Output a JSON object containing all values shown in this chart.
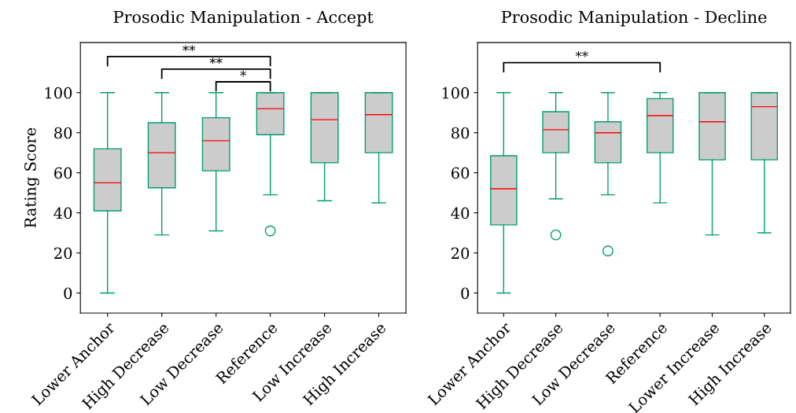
{
  "chart_data": [
    {
      "type": "box",
      "title": "Prosodic Manipulation - Accept",
      "ylabel": "Rating Score",
      "categories": [
        "Lower Anchor",
        "High Decrease",
        "Low Decrease",
        "Reference",
        "Low Increase",
        "High Increase"
      ],
      "ylim": [
        -10,
        125
      ],
      "yticks": [
        0,
        20,
        40,
        60,
        80,
        100
      ],
      "grid": false,
      "series": [
        {
          "color": "#009e73",
          "boxes": [
            {
              "low": 0,
              "q1": 41,
              "median": 55,
              "q3": 72,
              "high": 100
            },
            {
              "low": 29,
              "q1": 52.5,
              "median": 70,
              "q3": 85,
              "high": 100
            },
            {
              "low": 31,
              "q1": 61,
              "median": 76,
              "q3": 87.5,
              "high": 100
            },
            {
              "low": 49,
              "q1": 79,
              "median": 92,
              "q3": 100,
              "high": 100,
              "outliers": [
                31
              ]
            },
            {
              "low": 46,
              "q1": 65,
              "median": 86.5,
              "q3": 100,
              "high": 100
            },
            {
              "low": 45,
              "q1": 70,
              "median": 89,
              "q3": 100,
              "high": 100
            }
          ]
        }
      ],
      "annotations": [
        "**",
        "**",
        "*"
      ]
    },
    {
      "type": "box",
      "title": "Prosodic Manipulation - Decline",
      "categories": [
        "Lower Anchor",
        "High Decrease",
        "Low Decrease",
        "Reference",
        "Lower Increase",
        "High Increase"
      ],
      "ylim": [
        -10,
        125
      ],
      "yticks": [
        0,
        20,
        40,
        60,
        80,
        100
      ],
      "grid": false,
      "series": [
        {
          "color": "#009e73",
          "boxes": [
            {
              "low": 0,
              "q1": 34,
              "median": 52,
              "q3": 68.5,
              "high": 100
            },
            {
              "low": 47,
              "q1": 70,
              "median": 81.5,
              "q3": 90.5,
              "high": 100,
              "outliers": [
                29
              ]
            },
            {
              "low": 49,
              "q1": 65,
              "median": 80,
              "q3": 85.5,
              "high": 100,
              "outliers": [
                21
              ]
            },
            {
              "low": 45,
              "q1": 70,
              "median": 88.5,
              "q3": 97,
              "high": 100
            },
            {
              "low": 29,
              "q1": 66.5,
              "median": 85.5,
              "q3": 100,
              "high": 100
            },
            {
              "low": 30,
              "q1": 66.5,
              "median": 93,
              "q3": 100,
              "high": 100
            }
          ]
        }
      ],
      "annotations": [
        "**"
      ]
    }
  ]
}
